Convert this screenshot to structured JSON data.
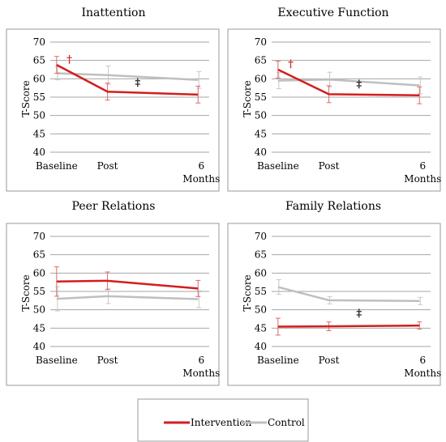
{
  "legend": {
    "items": [
      {
        "label": "Intervention",
        "color": "#d21e1e"
      },
      {
        "label": "Control",
        "color": "#bfbfbf"
      }
    ]
  },
  "chart_data": [
    {
      "type": "line",
      "title": "Inattention",
      "xlabel": "",
      "ylabel": "T-Score",
      "ylim": [
        40,
        70
      ],
      "yticks": [
        40,
        45,
        50,
        55,
        60,
        65,
        70
      ],
      "grid": true,
      "categories": [
        "Baseline",
        "Post",
        "6 Months"
      ],
      "series": [
        {
          "name": "Intervention",
          "color": "#d21e1e",
          "values": [
            63.8,
            56.5,
            55.7
          ],
          "err": [
            2.3,
            2.3,
            2.3
          ]
        },
        {
          "name": "Control",
          "color": "#bfbfbf",
          "values": [
            61.5,
            61.0,
            59.7
          ],
          "err": [
            1.8,
            2.5,
            2.3
          ]
        }
      ],
      "annotations": [
        {
          "symbol": "†",
          "x": 0.12,
          "y": 65.5,
          "color": "#d21e1e"
        },
        {
          "symbol": "‡",
          "x": 0.55,
          "y": 59.2,
          "color": "#111111"
        }
      ]
    },
    {
      "type": "line",
      "title": "Executive Function",
      "xlabel": "",
      "ylabel": "T-Score",
      "ylim": [
        40,
        70
      ],
      "yticks": [
        40,
        45,
        50,
        55,
        60,
        65,
        70
      ],
      "grid": true,
      "categories": [
        "Baseline",
        "Post",
        "6 Months"
      ],
      "series": [
        {
          "name": "Intervention",
          "color": "#d21e1e",
          "values": [
            62.5,
            55.8,
            55.5
          ],
          "err": [
            2.3,
            2.3,
            2.3
          ]
        },
        {
          "name": "Control",
          "color": "#bfbfbf",
          "values": [
            59.5,
            59.8,
            58.2
          ],
          "err": [
            2.2,
            2.0,
            2.3
          ]
        }
      ],
      "annotations": [
        {
          "symbol": "†",
          "x": 0.12,
          "y": 64.3,
          "color": "#d21e1e"
        },
        {
          "symbol": "‡",
          "x": 0.55,
          "y": 58.8,
          "color": "#111111"
        }
      ]
    },
    {
      "type": "line",
      "title": "Peer Relations",
      "xlabel": "",
      "ylabel": "T-Score",
      "ylim": [
        40,
        70
      ],
      "yticks": [
        40,
        45,
        50,
        55,
        60,
        65,
        70
      ],
      "grid": true,
      "categories": [
        "Baseline",
        "Post",
        "6 Months"
      ],
      "series": [
        {
          "name": "Intervention",
          "color": "#d21e1e",
          "values": [
            57.7,
            57.9,
            55.8
          ],
          "err": [
            4.0,
            2.4,
            2.2
          ]
        },
        {
          "name": "Control",
          "color": "#bfbfbf",
          "values": [
            53.0,
            53.7,
            52.9
          ],
          "err": [
            3.3,
            2.0,
            2.3
          ]
        }
      ],
      "annotations": []
    },
    {
      "type": "line",
      "title": "Family Relations",
      "xlabel": "",
      "ylabel": "T-Score",
      "ylim": [
        40,
        70
      ],
      "yticks": [
        40,
        45,
        50,
        55,
        60,
        65,
        70
      ],
      "grid": true,
      "categories": [
        "Baseline",
        "Post",
        "6 Months"
      ],
      "series": [
        {
          "name": "Intervention",
          "color": "#d21e1e",
          "values": [
            45.4,
            45.5,
            45.7
          ],
          "err": [
            2.3,
            1.2,
            1.0
          ]
        },
        {
          "name": "Control",
          "color": "#bfbfbf",
          "values": [
            56.2,
            52.6,
            52.4
          ],
          "err": [
            2.0,
            1.0,
            1.0
          ]
        }
      ],
      "annotations": [
        {
          "symbol": "‡",
          "x": 0.55,
          "y": 49.3,
          "color": "#111111"
        }
      ]
    }
  ]
}
